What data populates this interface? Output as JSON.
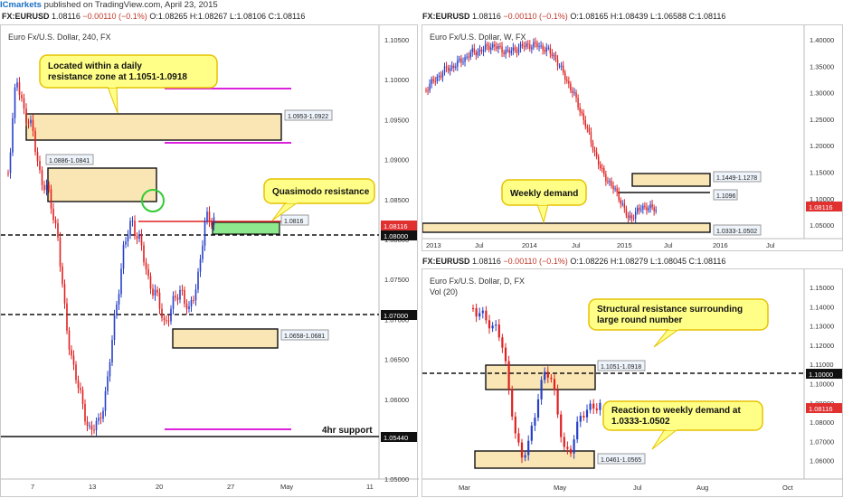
{
  "header": {
    "brand": "ICmarkets",
    "published": "published on TradingView.com, April 23, 2015"
  },
  "colors": {
    "up": "#2840c8",
    "down": "#e02020",
    "zone": "#fae6b4",
    "green_zone": "#8ee88e",
    "magenta": "#dd22dd",
    "last_price": "#e03030",
    "callout": "#ffff88"
  },
  "panels": {
    "h4": {
      "ohlc": {
        "symbol": "FX:EURUSD",
        "last": "1.08116",
        "change": "−0.00110 (−0.1%)",
        "o": "O:1.08265",
        "h": "H:1.08267",
        "l": "L:1.08106",
        "c": "C:1.08116"
      },
      "title": "Euro Fx/U.S. Dollar, 240, FX",
      "y_ticks": [
        "1.10500",
        "1.10000",
        "1.09500",
        "1.09000",
        "1.08500",
        "1.08000",
        "1.07500",
        "1.07000",
        "1.06500",
        "1.06000",
        "1.05500",
        "1.05000"
      ],
      "x_ticks": [
        "7",
        "13",
        "20",
        "27",
        "May",
        "11"
      ],
      "price_labels": {
        "level1": "1.08000",
        "level2": "1.07000",
        "support": "1.05440",
        "last": "1.08116"
      },
      "box_labels": [
        "1.0953-1.0922",
        "1.0886-1.0841",
        "1.0816",
        "1.0658-1.0681"
      ],
      "callouts": [
        "Located within a daily resistance zone at 1.1051-1.0918",
        "Quasimodo resistance",
        "4hr support"
      ]
    },
    "w": {
      "ohlc": {
        "symbol": "FX:EURUSD",
        "last": "1.08116",
        "change": "−0.00110 (−0.1%)",
        "o": "O:1.08165",
        "h": "H:1.08439",
        "l": "L:1.06588",
        "c": "C:1.08116"
      },
      "title": "Euro Fx/U.S. Dollar, W, FX",
      "y_ticks": [
        "1.40000",
        "1.35000",
        "1.30000",
        "1.25000",
        "1.20000",
        "1.15000",
        "1.10000",
        "1.05000"
      ],
      "x_ticks": [
        "2013",
        "Jul",
        "2014",
        "Jul",
        "2015",
        "Jul",
        "2016",
        "Jul"
      ],
      "price_labels": {
        "last": "1.08116"
      },
      "box_labels": [
        "1.1449-1.1278",
        "1.1096",
        "1.0333-1.0502"
      ],
      "callouts": [
        "Weekly demand"
      ]
    },
    "d": {
      "ohlc": {
        "symbol": "FX:EURUSD",
        "last": "1.08116",
        "change": "−0.00110 (−0.1%)",
        "o": "O:1.08226",
        "h": "H:1.08279",
        "l": "L:1.08045",
        "c": "C:1.08116"
      },
      "title": "Euro Fx/U.S. Dollar, D, FX",
      "indicator": "Vol (20)",
      "y_ticks": [
        "1.15000",
        "1.14000",
        "1.13000",
        "1.12000",
        "1.11000",
        "1.10000",
        "1.09000",
        "1.08000",
        "1.07000",
        "1.06000"
      ],
      "x_ticks": [
        "Mar",
        "May",
        "Jul",
        "Aug",
        "Oct"
      ],
      "price_labels": {
        "level": "1.10000",
        "last": "1.08116"
      },
      "box_labels": [
        "1.1051-1.0918",
        "1.0461-1.0565"
      ],
      "callouts": [
        "Structural resistance surrounding large round number",
        "Reaction to weekly demand at 1.0333-1.0502"
      ]
    }
  }
}
